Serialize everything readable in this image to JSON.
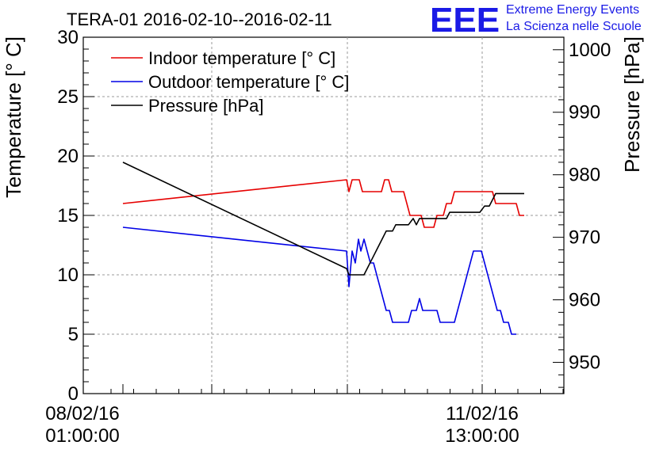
{
  "chart_data": {
    "type": "line",
    "title": "TERA-01 2016-02-10--2016-02-11",
    "ylabel": "Temperature [° C]",
    "y2label": "Pressure [hPa]",
    "xlabel": "",
    "x_tick_labels": [
      {
        "date": "08/02/16",
        "time": "01:00:00"
      },
      {
        "date": "11/02/16",
        "time": "13:00:00"
      }
    ],
    "ylim": [
      0,
      30
    ],
    "y_ticks": [
      0,
      5,
      10,
      15,
      20,
      25,
      30
    ],
    "y2lim": [
      945,
      1002
    ],
    "y2_ticks": [
      950,
      960,
      970,
      980,
      990,
      1000
    ],
    "grid": true,
    "legend_position": "top-left",
    "series": [
      {
        "name": "Indoor temperature [° C]",
        "color": "#e60000",
        "axis": "left",
        "points": [
          [
            0,
            16
          ],
          [
            282,
            18
          ],
          [
            285,
            17
          ],
          [
            289,
            18
          ],
          [
            298,
            18
          ],
          [
            302,
            17
          ],
          [
            326,
            17
          ],
          [
            330,
            18
          ],
          [
            335,
            18
          ],
          [
            339,
            17
          ],
          [
            354,
            17
          ],
          [
            358,
            16
          ],
          [
            362,
            15
          ],
          [
            372,
            15
          ],
          [
            376,
            15
          ],
          [
            380,
            14
          ],
          [
            392,
            14
          ],
          [
            396,
            15
          ],
          [
            404,
            15
          ],
          [
            408,
            16
          ],
          [
            414,
            16
          ],
          [
            418,
            17
          ],
          [
            456,
            17
          ],
          [
            460,
            17
          ],
          [
            466,
            17
          ],
          [
            470,
            16
          ],
          [
            496,
            16
          ],
          [
            500,
            15
          ],
          [
            506,
            15
          ]
        ]
      },
      {
        "name": "Outdoor temperature [° C]",
        "color": "#0000e6",
        "axis": "left",
        "points": [
          [
            0,
            14
          ],
          [
            282,
            12
          ],
          [
            285,
            9
          ],
          [
            289,
            12
          ],
          [
            293,
            11
          ],
          [
            297,
            13
          ],
          [
            300,
            12
          ],
          [
            304,
            13
          ],
          [
            308,
            12
          ],
          [
            312,
            11
          ],
          [
            316,
            11
          ],
          [
            320,
            10
          ],
          [
            324,
            9
          ],
          [
            328,
            8
          ],
          [
            332,
            7
          ],
          [
            336,
            7
          ],
          [
            340,
            6
          ],
          [
            360,
            6
          ],
          [
            364,
            7
          ],
          [
            370,
            7
          ],
          [
            374,
            8
          ],
          [
            378,
            7
          ],
          [
            382,
            7
          ],
          [
            386,
            7
          ],
          [
            390,
            7
          ],
          [
            396,
            7
          ],
          [
            400,
            6
          ],
          [
            418,
            6
          ],
          [
            422,
            7
          ],
          [
            426,
            8
          ],
          [
            430,
            9
          ],
          [
            434,
            10
          ],
          [
            438,
            11
          ],
          [
            442,
            12
          ],
          [
            452,
            12
          ],
          [
            456,
            11
          ],
          [
            460,
            10
          ],
          [
            464,
            9
          ],
          [
            468,
            8
          ],
          [
            472,
            7
          ],
          [
            476,
            7
          ],
          [
            480,
            6
          ],
          [
            486,
            6
          ],
          [
            490,
            5
          ],
          [
            496,
            5
          ]
        ]
      },
      {
        "name": "Pressure [hPa]",
        "color": "#000000",
        "axis": "right",
        "points": [
          [
            0,
            982
          ],
          [
            282,
            965
          ],
          [
            285,
            964
          ],
          [
            289,
            964
          ],
          [
            304,
            964
          ],
          [
            308,
            965
          ],
          [
            312,
            966
          ],
          [
            316,
            967
          ],
          [
            320,
            968
          ],
          [
            324,
            969
          ],
          [
            328,
            970
          ],
          [
            332,
            971
          ],
          [
            340,
            971
          ],
          [
            344,
            972
          ],
          [
            352,
            972
          ],
          [
            356,
            972
          ],
          [
            360,
            972
          ],
          [
            366,
            973
          ],
          [
            370,
            972
          ],
          [
            374,
            973
          ],
          [
            378,
            973
          ],
          [
            382,
            973
          ],
          [
            396,
            973
          ],
          [
            400,
            973
          ],
          [
            404,
            973
          ],
          [
            408,
            973
          ],
          [
            412,
            974
          ],
          [
            416,
            974
          ],
          [
            420,
            974
          ],
          [
            424,
            974
          ],
          [
            428,
            974
          ],
          [
            436,
            974
          ],
          [
            440,
            974
          ],
          [
            446,
            974
          ],
          [
            450,
            974
          ],
          [
            456,
            975
          ],
          [
            462,
            975
          ],
          [
            466,
            976
          ],
          [
            470,
            977
          ],
          [
            474,
            977
          ],
          [
            506,
            977
          ]
        ]
      }
    ]
  },
  "logo": {
    "mark": "EEE",
    "line1": "Extreme Energy Events",
    "line2": "La Scienza nelle Scuole"
  }
}
